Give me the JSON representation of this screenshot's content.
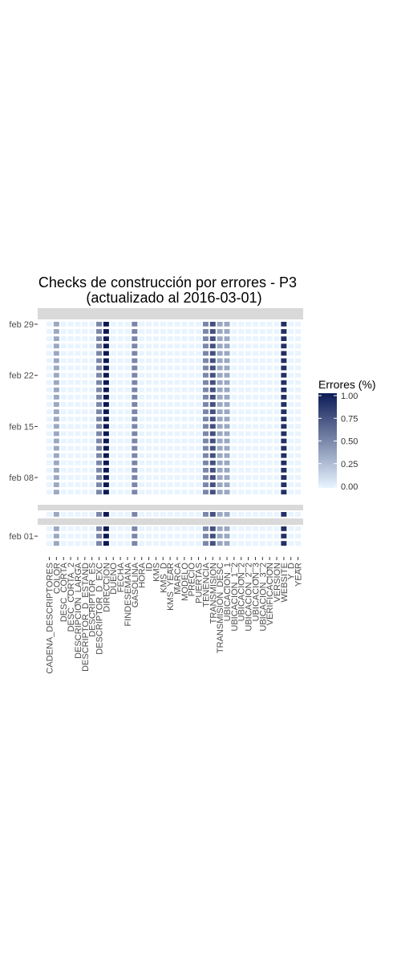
{
  "chart_data": {
    "type": "heatmap",
    "title": "Checks de construcción por errores - P3",
    "subtitle": "(actualizado al 2016-03-01)",
    "xlabel": "",
    "ylabel": "",
    "x_categories": [
      "CADENA_DESCRIPTORES",
      "COLOR",
      "DESC_CORTA",
      "DESC_CORTA_2",
      "DESCRIPCION_LARGA",
      "DESCRIPTOR_D_ESTAND",
      "DESCRIPTOR_ES",
      "DESCRIPTOR_D_EXC",
      "DIRECCION",
      "DUENO",
      "FECHA",
      "FINDESEMANA",
      "GASOLINA",
      "HORA",
      "ID",
      "KMS",
      "KMS_D",
      "KMS_YEAR",
      "MARCA",
      "MODELO",
      "PRECIO",
      "PUERTAS",
      "TENENCIA",
      "TRANSMISION",
      "TRANSMISION_DESC",
      "UBICACION_1",
      "UBICACION_1_2",
      "UBICACION_2",
      "UBICACION_2_2",
      "UBICACION_3",
      "UBICACION_3_2",
      "VERIFICACION",
      "VERSION",
      "WEBSITE",
      "Y_D",
      "YEAR"
    ],
    "y_ticks": [
      "feb 29",
      "feb 22",
      "feb 15",
      "feb 08",
      "feb 01"
    ],
    "panel_top_dates": [
      "2016-02-06",
      "2016-02-29"
    ],
    "panel_mid_dates": [
      "2016-02-04",
      "2016-02-04"
    ],
    "panel_bottom_dates": [
      "2016-01-31",
      "2016-02-02"
    ],
    "column_error_rates": [
      0,
      0.35,
      0,
      0,
      0,
      0,
      0,
      0.5,
      1,
      0,
      0,
      0,
      0.5,
      0,
      0,
      0,
      0,
      0,
      0,
      0,
      0,
      0,
      0.5,
      0.75,
      0.35,
      0.35,
      0,
      0,
      0,
      0,
      0,
      0,
      0,
      0.9,
      0,
      0
    ],
    "legend": {
      "title": "Errores (%)",
      "min": 0,
      "max": 1,
      "ticks": [
        "1.00",
        "0.75",
        "0.50",
        "0.25",
        "0.00"
      ],
      "tick_values": [
        1,
        0.75,
        0.5,
        0.25,
        0
      ],
      "low_color": "#e8f4ff",
      "high_color": "#0b1a55",
      "placement": "right"
    },
    "grid": false
  }
}
